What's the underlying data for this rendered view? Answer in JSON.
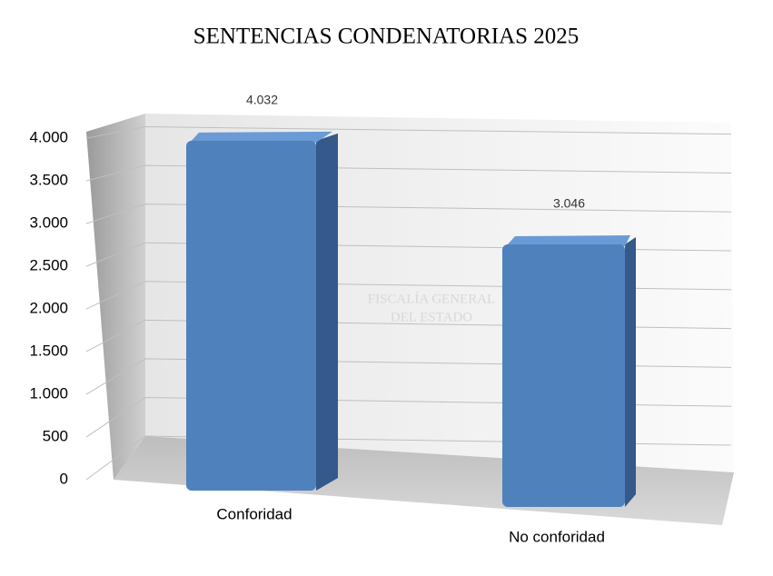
{
  "chart_data": {
    "type": "bar3d",
    "title": "SENTENCIAS CONDENATORIAS 2025",
    "watermark": [
      "FISCALÍA GENERAL",
      "DEL ESTADO"
    ],
    "categories": [
      "Conforidad",
      "No conforidad"
    ],
    "values": [
      4032,
      3046
    ],
    "value_labels": [
      "4.032",
      "3.046"
    ],
    "color": "#4f81bd",
    "ylim": [
      0,
      4300
    ],
    "yticks": [
      0,
      500,
      {
        "value": 1000,
        "label": "1.000"
      },
      {
        "value": 1500,
        "label": "1.500"
      },
      {
        "value": 2000,
        "label": "2.000"
      },
      {
        "value": 2500,
        "label": "2.500"
      },
      {
        "value": 3000,
        "label": "3.000"
      },
      {
        "value": 3500,
        "label": "3.500"
      },
      {
        "value": 4000,
        "label": "4.000"
      }
    ],
    "grid": true
  }
}
